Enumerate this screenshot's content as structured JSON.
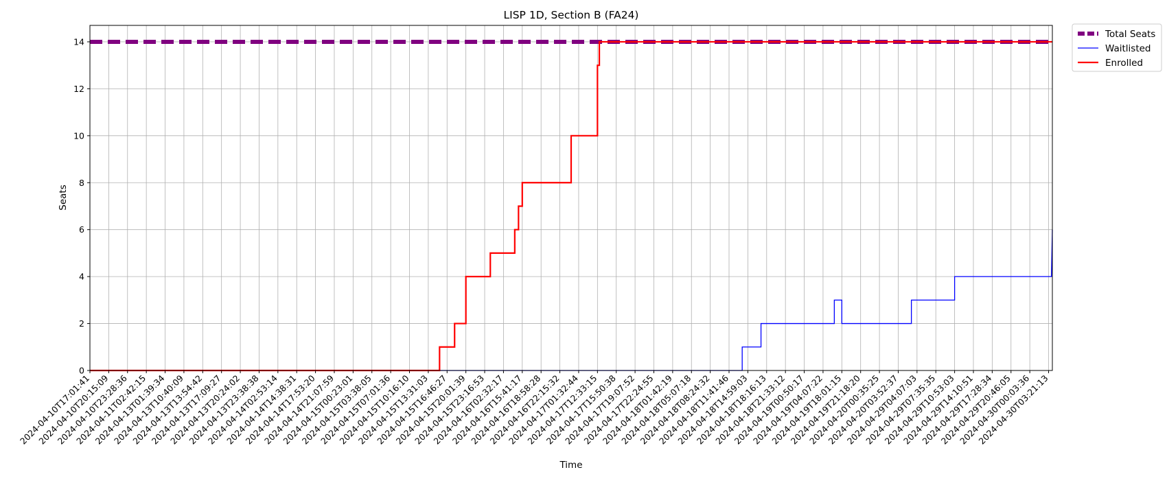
{
  "chart_data": {
    "type": "line",
    "title": "LISP 1D, Section B (FA24)",
    "xlabel": "Time",
    "ylabel": "Seats",
    "ylim": [
      0,
      14.7
    ],
    "yticks": [
      0,
      2,
      4,
      6,
      8,
      10,
      12,
      14
    ],
    "grid": true,
    "legend_position": "outside-top-right",
    "x_categories": [
      "2024-04-10T17:01:41",
      "2024-04-10T20:15:09",
      "2024-04-10T23:28:36",
      "2024-04-11T02:42:15",
      "2024-04-13T01:39:34",
      "2024-04-13T10:40:09",
      "2024-04-13T13:54:42",
      "2024-04-13T17:09:27",
      "2024-04-13T20:24:02",
      "2024-04-13T23:38:38",
      "2024-04-14T02:53:14",
      "2024-04-14T14:38:31",
      "2024-04-14T17:53:20",
      "2024-04-14T21:07:59",
      "2024-04-15T00:23:01",
      "2024-04-15T03:38:05",
      "2024-04-15T07:01:36",
      "2024-04-15T10:16:10",
      "2024-04-15T13:31:03",
      "2024-04-15T16:46:27",
      "2024-04-15T20:01:39",
      "2024-04-15T23:16:53",
      "2024-04-16T02:32:17",
      "2024-04-16T15:41:17",
      "2024-04-16T18:58:28",
      "2024-04-16T22:15:32",
      "2024-04-17T01:32:44",
      "2024-04-17T12:33:15",
      "2024-04-17T15:50:38",
      "2024-04-17T19:07:52",
      "2024-04-17T22:24:55",
      "2024-04-18T01:42:19",
      "2024-04-18T05:07:18",
      "2024-04-18T08:24:32",
      "2024-04-18T11:41:46",
      "2024-04-18T14:59:03",
      "2024-04-18T18:16:13",
      "2024-04-18T21:33:12",
      "2024-04-19T00:50:17",
      "2024-04-19T04:07:22",
      "2024-04-19T18:01:15",
      "2024-04-19T21:18:20",
      "2024-04-20T00:35:25",
      "2024-04-20T03:52:37",
      "2024-04-29T04:07:03",
      "2024-04-29T07:35:35",
      "2024-04-29T10:53:03",
      "2024-04-29T14:10:51",
      "2024-04-29T17:28:34",
      "2024-04-29T20:46:05",
      "2024-04-30T00:03:36",
      "2024-04-30T03:21:13"
    ],
    "x_end_index": 51.2,
    "legend": [
      "Total Seats",
      "Waitlisted",
      "Enrolled"
    ],
    "series": [
      {
        "name": "Total Seats",
        "color": "#800080",
        "style": "dashed",
        "points": [
          [
            0,
            14
          ],
          [
            51.2,
            14
          ]
        ]
      },
      {
        "name": "Waitlisted",
        "color": "#0000ff",
        "style": "solid",
        "points": [
          [
            0,
            0
          ],
          [
            34.7,
            0
          ],
          [
            34.7,
            1
          ],
          [
            35.7,
            1
          ],
          [
            35.7,
            2
          ],
          [
            39.6,
            2
          ],
          [
            39.6,
            3
          ],
          [
            40.0,
            3
          ],
          [
            40.0,
            2
          ],
          [
            43.7,
            2
          ],
          [
            43.7,
            3
          ],
          [
            46.0,
            3
          ],
          [
            46.0,
            4
          ],
          [
            51.15,
            4
          ],
          [
            51.2,
            6
          ]
        ]
      },
      {
        "name": "Enrolled",
        "color": "#ff0000",
        "style": "solid",
        "points": [
          [
            0,
            0
          ],
          [
            18.6,
            0
          ],
          [
            18.6,
            1
          ],
          [
            19.4,
            1
          ],
          [
            19.4,
            2
          ],
          [
            20.0,
            2
          ],
          [
            20.0,
            4
          ],
          [
            21.3,
            4
          ],
          [
            21.3,
            5
          ],
          [
            22.6,
            5
          ],
          [
            22.6,
            6
          ],
          [
            22.8,
            6
          ],
          [
            22.8,
            7
          ],
          [
            23.0,
            7
          ],
          [
            23.0,
            8
          ],
          [
            25.6,
            8
          ],
          [
            25.6,
            10
          ],
          [
            27.0,
            10
          ],
          [
            27.0,
            13
          ],
          [
            27.1,
            13
          ],
          [
            27.1,
            14
          ],
          [
            51.2,
            14
          ]
        ]
      }
    ]
  }
}
